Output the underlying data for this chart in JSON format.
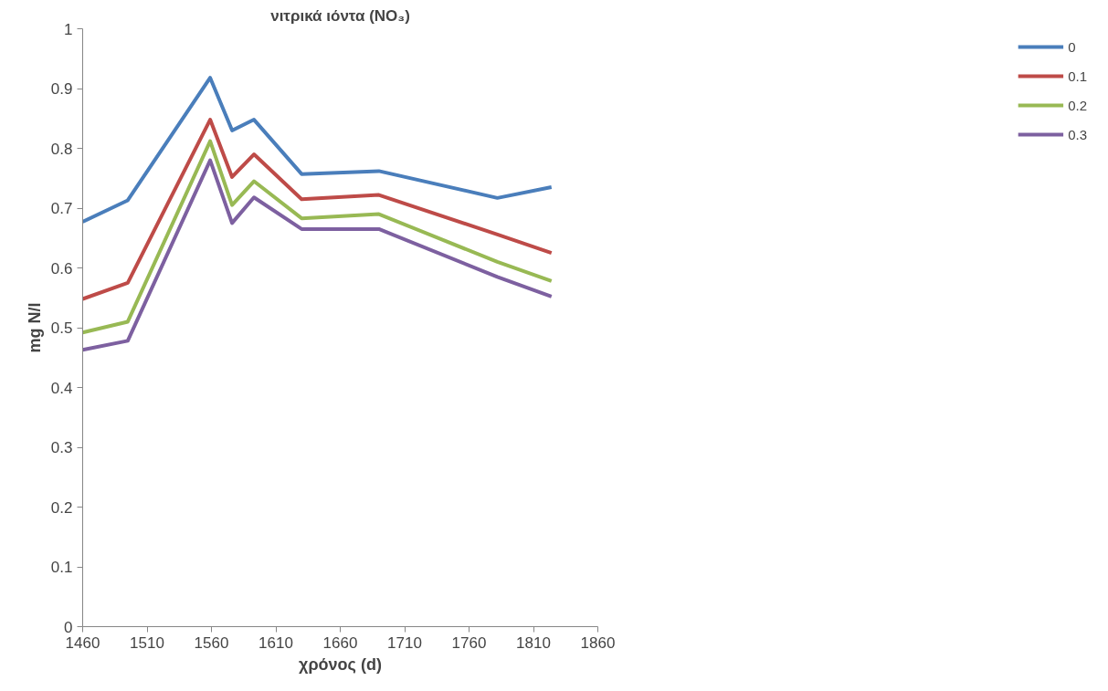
{
  "chart_data": {
    "type": "line",
    "title": "νιτρικά ιόντα (NO₃)",
    "xlabel": "χρόνος (d)",
    "ylabel": "mg N/l",
    "x": [
      1460,
      1495,
      1559,
      1576,
      1593,
      1630,
      1690,
      1782,
      1824
    ],
    "series": [
      {
        "name": "0",
        "color": "#4a7ebb",
        "values": [
          0.677,
          0.713,
          0.918,
          0.83,
          0.848,
          0.757,
          0.762,
          0.717,
          0.735
        ]
      },
      {
        "name": "0.1",
        "color": "#be4b48",
        "values": [
          0.548,
          0.575,
          0.848,
          0.752,
          0.79,
          0.715,
          0.722,
          0.656,
          0.625
        ]
      },
      {
        "name": "0.2",
        "color": "#98b954",
        "values": [
          0.492,
          0.51,
          0.812,
          0.705,
          0.745,
          0.683,
          0.69,
          0.61,
          0.578
        ]
      },
      {
        "name": "0.3",
        "color": "#7d60a0",
        "values": [
          0.463,
          0.478,
          0.78,
          0.675,
          0.718,
          0.665,
          0.665,
          0.585,
          0.552
        ]
      }
    ],
    "xlim": [
      1460,
      1860
    ],
    "ylim": [
      0,
      1
    ],
    "xticks": [
      1460,
      1510,
      1560,
      1610,
      1660,
      1710,
      1760,
      1810,
      1860
    ],
    "yticks": [
      0,
      0.1,
      0.2,
      0.3,
      0.4,
      0.5,
      0.6,
      0.7,
      0.8,
      0.9,
      1
    ],
    "grid": false,
    "legend": "right",
    "marker": "none",
    "line_style": "solid"
  }
}
